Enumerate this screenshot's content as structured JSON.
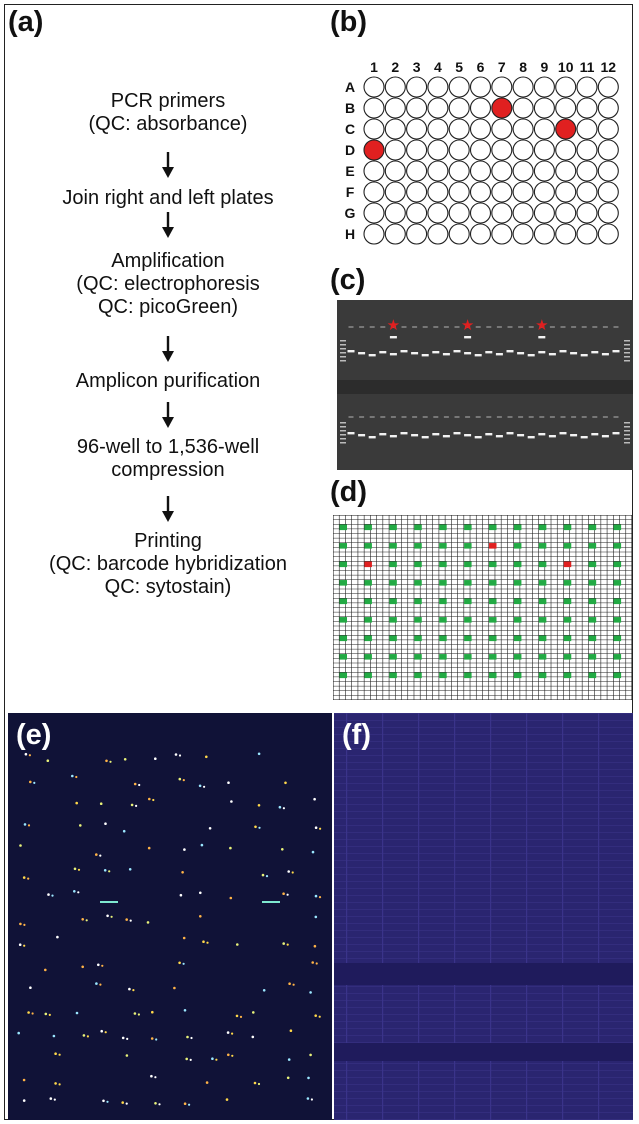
{
  "panels": {
    "a": "(a)",
    "b": "(b)",
    "c": "(c)",
    "d": "(d)",
    "e": "(e)",
    "f": "(f)"
  },
  "workflow": [
    {
      "lines": [
        "PCR primers",
        "(QC: absorbance)"
      ]
    },
    {
      "lines": [
        "Join right and left plates"
      ]
    },
    {
      "lines": [
        "Amplification",
        "(QC: electrophoresis",
        "QC: picoGreen)"
      ]
    },
    {
      "lines": [
        "Amplicon purification"
      ]
    },
    {
      "lines": [
        "96-well to 1,536-well",
        "compression"
      ]
    },
    {
      "lines": [
        "Printing",
        "(QC: barcode hybridization",
        "QC: sytostain)"
      ]
    }
  ],
  "plate96": {
    "columns": [
      "1",
      "2",
      "3",
      "4",
      "5",
      "6",
      "7",
      "8",
      "9",
      "10",
      "11",
      "12"
    ],
    "rows": [
      "A",
      "B",
      "C",
      "D",
      "E",
      "F",
      "G",
      "H"
    ],
    "highlighted_wells": [
      {
        "row": "B",
        "col": 7
      },
      {
        "row": "C",
        "col": 10
      },
      {
        "row": "D",
        "col": 1
      }
    ],
    "well_color": "#ffffff",
    "highlight_color": "#e02020"
  },
  "gel": {
    "marked_lanes": [
      4,
      11,
      18
    ],
    "marker_color": "#e02020",
    "background": "#3a3a3a"
  },
  "plate1536": {
    "grid_rows": 40,
    "grid_cols": 48,
    "spot_rows": 9,
    "spot_cols": 12,
    "spot_color": "#22aa44",
    "highlight_color": "#e02020",
    "highlighted_spots": [
      {
        "row": 2,
        "col": 1
      },
      {
        "row": 1,
        "col": 6
      },
      {
        "row": 2,
        "col": 9
      }
    ]
  },
  "scans": {
    "e_background": "#101237",
    "f_background": "#2a2570"
  }
}
